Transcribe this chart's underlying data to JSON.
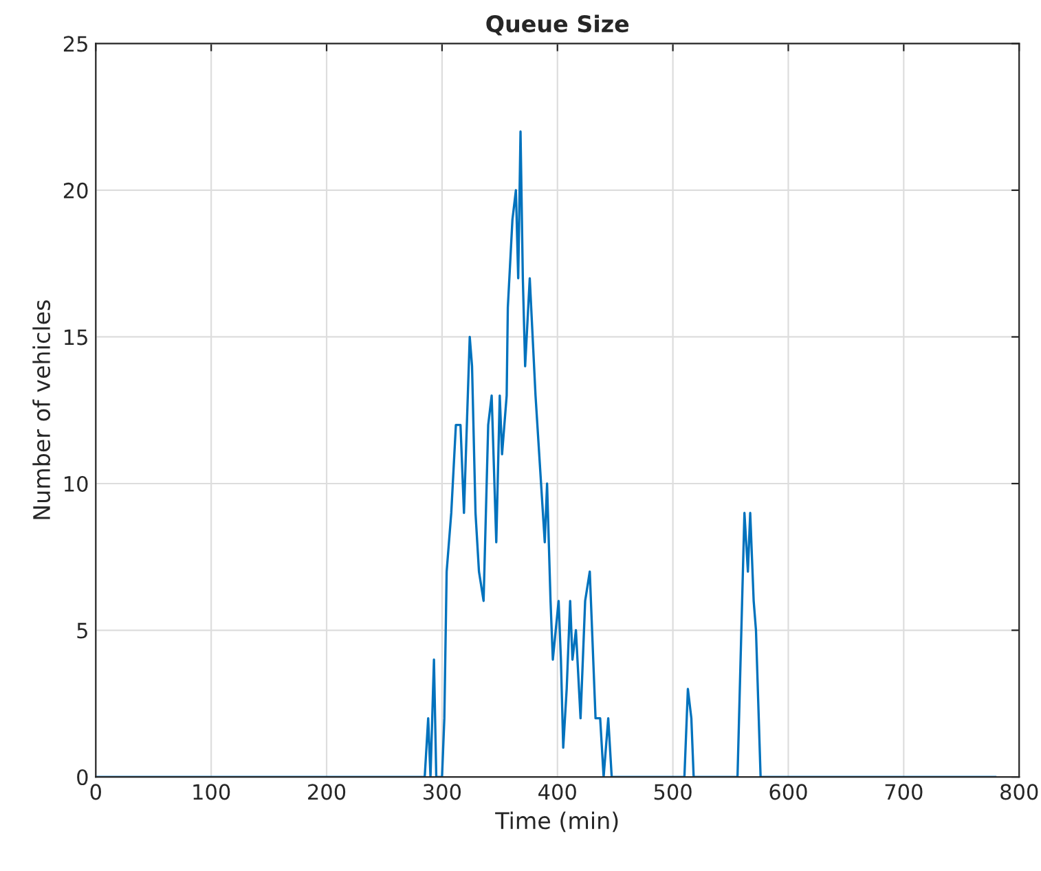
{
  "chart_data": {
    "type": "line",
    "title": "Queue Size",
    "xlabel": "Time (min)",
    "ylabel": "Number of vehicles",
    "series": [
      {
        "color": "#0072bd",
        "x": [
          0,
          285,
          288,
          290,
          293,
          295,
          298,
          300,
          302,
          304,
          308,
          312,
          316,
          319,
          324,
          326,
          329,
          332,
          336,
          340,
          343,
          347,
          350,
          352,
          356,
          357,
          361,
          364,
          366,
          368,
          370,
          372,
          376,
          381,
          389,
          391,
          394,
          396,
          401,
          403,
          405,
          408,
          411,
          413,
          416,
          420,
          424,
          428,
          433,
          437,
          440,
          444,
          447,
          450,
          508,
          510,
          513,
          516,
          518,
          556,
          562,
          565,
          567,
          570,
          572,
          576,
          780
        ],
        "values": [
          0,
          0,
          2,
          0,
          4,
          0,
          0,
          0,
          2,
          7,
          9,
          12,
          12,
          9,
          15,
          14,
          9,
          7,
          6,
          12,
          13,
          8,
          13,
          11,
          13,
          16,
          19,
          20,
          17,
          22,
          17,
          14,
          17,
          13,
          8,
          10,
          6,
          4,
          6,
          4,
          1,
          3,
          6,
          4,
          5,
          2,
          6,
          7,
          2,
          2,
          0,
          2,
          0,
          0,
          0,
          0,
          3,
          2,
          0,
          0,
          9,
          7,
          9,
          6,
          5,
          0,
          0
        ]
      }
    ],
    "xlim": [
      0,
      800
    ],
    "xticks": [
      0,
      100,
      200,
      300,
      400,
      500,
      600,
      700,
      800
    ],
    "ylim": [
      0,
      25
    ],
    "yticks": [
      0,
      5,
      10,
      15,
      20,
      25
    ],
    "grid": true,
    "legend": false
  }
}
